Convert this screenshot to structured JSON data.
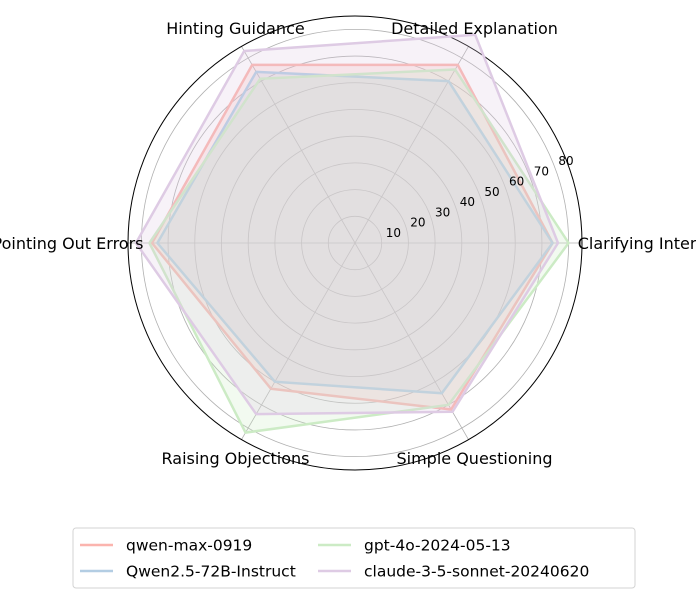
{
  "chart_data": {
    "type": "radar",
    "axes": [
      "Clarifying Intent",
      "Detailed Explanation",
      "Hinting Guidance",
      "Pointing Out Errors",
      "Raising Objections",
      "Simple Questioning"
    ],
    "r_ticks": [
      10,
      20,
      30,
      40,
      50,
      60,
      70,
      80
    ],
    "r_max": 85,
    "grid": true,
    "legend_position": "bottom",
    "series": [
      {
        "name": "qwen-max-0919",
        "color": "#fbb4ae",
        "values": [
          74,
          77,
          77,
          76,
          63,
          72
        ]
      },
      {
        "name": "Qwen2.5-72B-Instruct",
        "color": "#b3cde3",
        "values": [
          74,
          70,
          74,
          74,
          60,
          65
        ]
      },
      {
        "name": "gpt-4o-2024-05-13",
        "color": "#ccebc5",
        "values": [
          80,
          75,
          71,
          77,
          82,
          70
        ]
      },
      {
        "name": "claude-3-5-sonnet-20240620",
        "color": "#decbe4",
        "values": [
          76,
          90,
          83,
          82,
          74,
          73
        ]
      }
    ]
  }
}
